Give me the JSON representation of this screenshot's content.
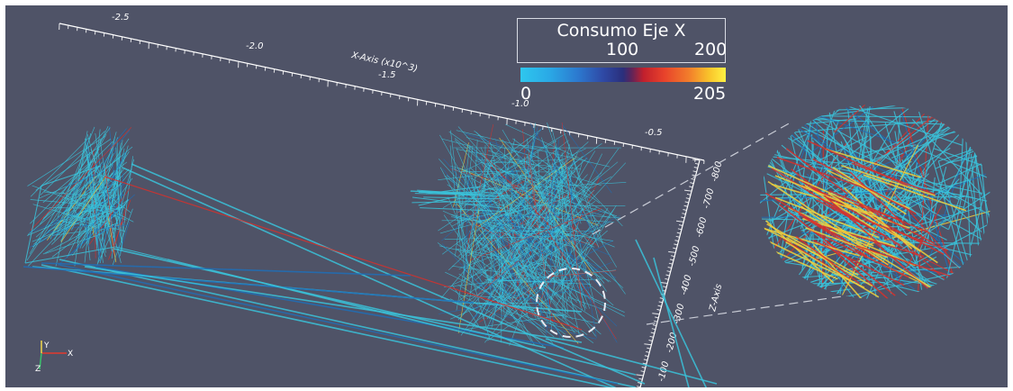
{
  "viewport": {
    "background": "#4f5367",
    "x_axis": {
      "title": "X-Axis (x10^3)",
      "ticks": [
        "-2.5",
        "-2.0",
        "-1.5",
        "-1.0",
        "-0.5"
      ]
    },
    "z_axis": {
      "title": "Z-Axis",
      "ticks": [
        "-800",
        "-700",
        "-600",
        "-500",
        "-400",
        "-300",
        "-200",
        "-100"
      ]
    },
    "orientation_triad": {
      "y": "Y",
      "x": "X",
      "z": "Z"
    }
  },
  "legend": {
    "title": "Consumo Eje X",
    "labels_top": [
      "100",
      "200"
    ],
    "labels_bottom": [
      "0",
      "205"
    ],
    "colormap": [
      "#2ec7ee",
      "#2c79cf",
      "#2a2f7c",
      "#c2202d",
      "#f27d2b",
      "#fff243"
    ]
  },
  "trajectory_colors": {
    "primary": "#3ac3db",
    "secondary": "#1e6fb7",
    "accent_red": "#d7302b",
    "accent_yellow": "#f2d03a"
  }
}
